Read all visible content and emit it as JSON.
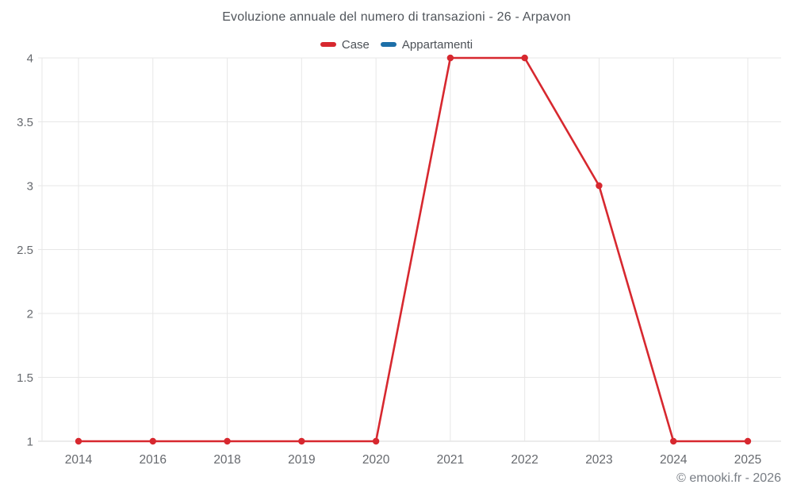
{
  "page": {
    "watermark": "© emooki.fr - 2026"
  },
  "chart_data": {
    "type": "line",
    "title": "Evoluzione annuale del numero di transazioni - 26 - Arpavon",
    "categories": [
      "2014",
      "2016",
      "2018",
      "2019",
      "2020",
      "2021",
      "2022",
      "2023",
      "2024",
      "2025"
    ],
    "series": [
      {
        "name": "Case",
        "color": "#d7282f",
        "values": [
          1,
          1,
          1,
          1,
          1,
          4,
          4,
          3,
          1,
          1
        ]
      },
      {
        "name": "Appartamenti",
        "color": "#1d6fa8",
        "values": []
      }
    ],
    "xlabel": "",
    "ylabel": "",
    "ylim": [
      1,
      4
    ],
    "yticks": [
      1,
      1.5,
      2,
      2.5,
      3,
      3.5,
      4
    ],
    "grid": true,
    "legend_position": "top",
    "colors": {
      "grid": "#e7e7e7",
      "axis_line": "#d9d9d9",
      "tick_text": "#66696e",
      "title_text": "#50555b",
      "legend_text": "#4c5157",
      "watermark_text": "#787d84"
    }
  }
}
